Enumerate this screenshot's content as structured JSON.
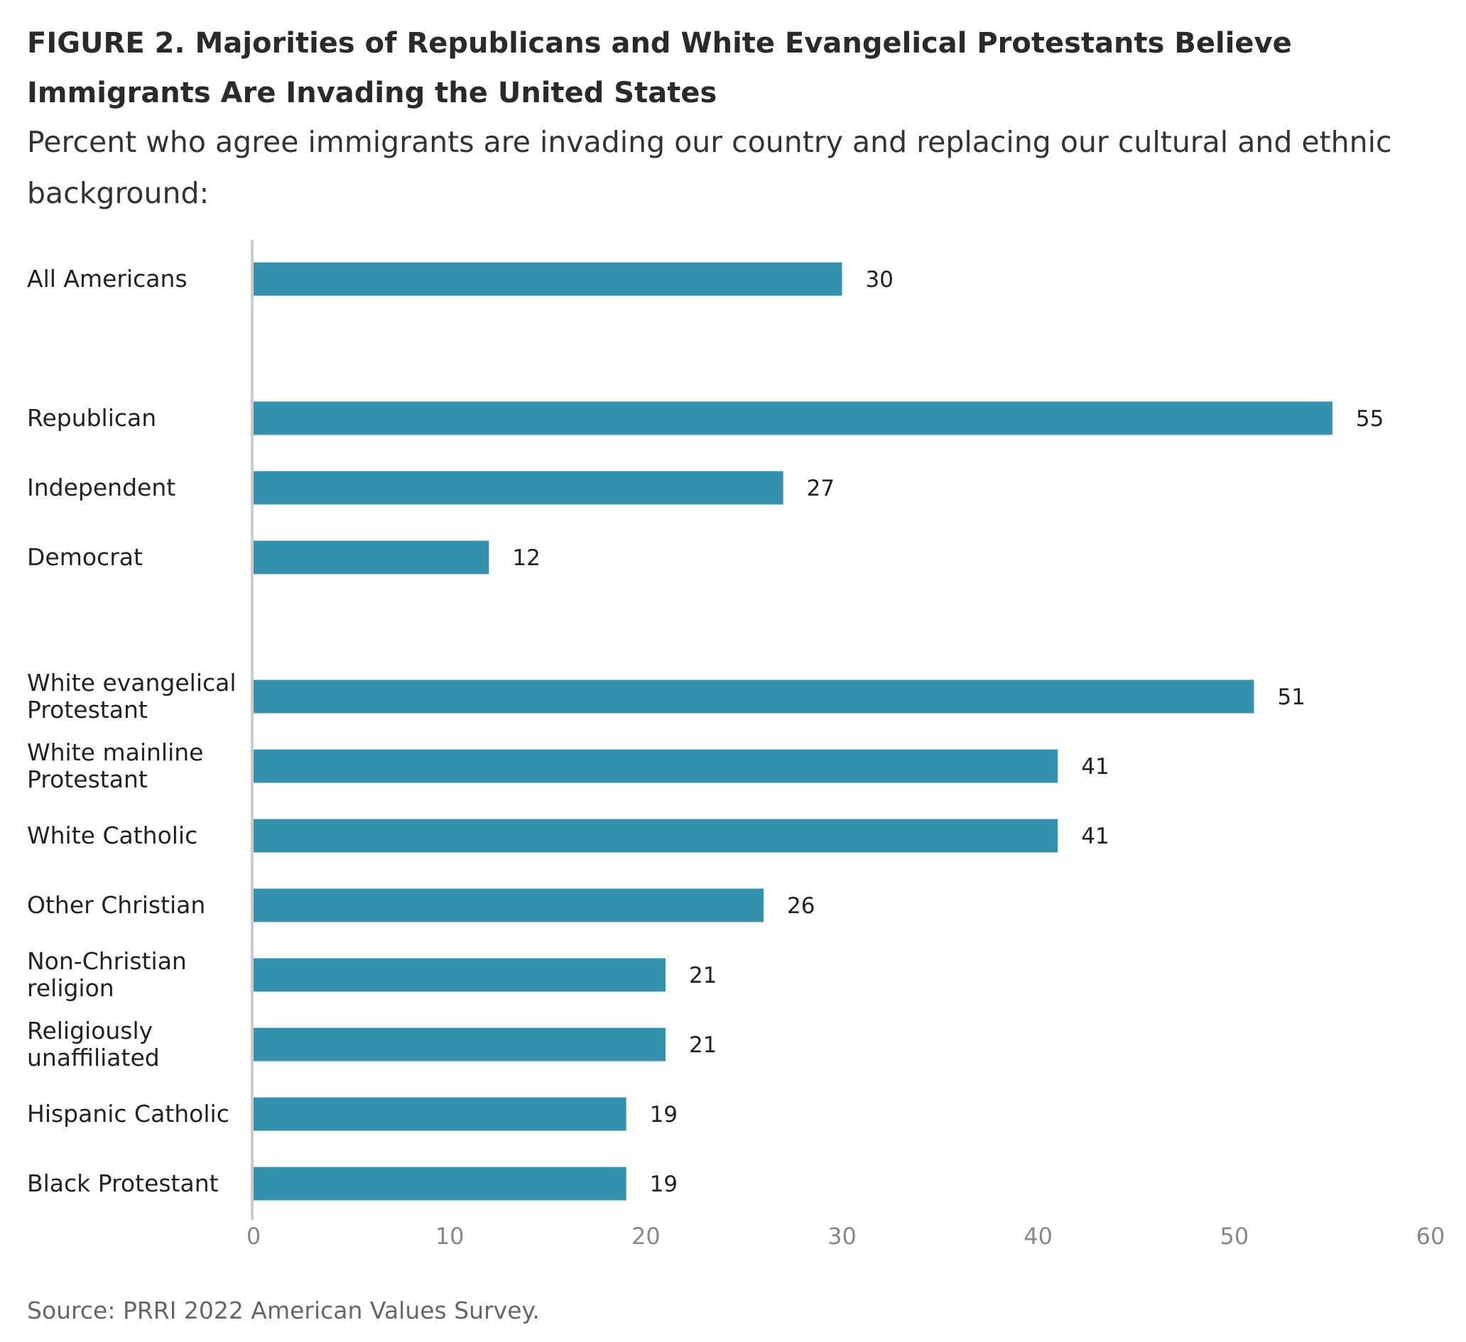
{
  "title": "FIGURE 2.  Majorities of Republicans and White Evangelical Protestants Believe Immigrants Are Invading the United States",
  "subtitle": "Percent who agree immigrants are invading our country and replacing our cultural and ethnic background:",
  "source": "Source: PRRI 2022 American Values Survey.",
  "colors": {
    "bar": "#3592AF",
    "axis_line": "#cccccc",
    "tick_label": "#888888",
    "category_label": "#222222",
    "value_label": "#222222"
  },
  "chart_data": {
    "type": "bar",
    "orientation": "horizontal",
    "categories": [
      [
        "All Americans"
      ],
      [
        "Republican"
      ],
      [
        "Independent"
      ],
      [
        "Democrat"
      ],
      [
        "White evangelical",
        "Protestant"
      ],
      [
        "White mainline",
        "Protestant"
      ],
      [
        "White Catholic"
      ],
      [
        "Other Christian"
      ],
      [
        "Non-Christian",
        "religion"
      ],
      [
        "Religiously",
        "unaffiliated"
      ],
      [
        "Hispanic Catholic"
      ],
      [
        "Black Protestant"
      ]
    ],
    "values": [
      30,
      55,
      27,
      12,
      51,
      41,
      41,
      26,
      21,
      21,
      19,
      19
    ],
    "value_labels": [
      "30",
      "55",
      "27",
      "12",
      "51",
      "41",
      "41",
      "26",
      "21",
      "21",
      "19",
      "19"
    ],
    "groups": [
      [
        0
      ],
      [
        1,
        2,
        3
      ],
      [
        4,
        5,
        6,
        7,
        8,
        9,
        10,
        11
      ]
    ],
    "xlim": [
      0,
      60
    ],
    "xticks": [
      0,
      10,
      20,
      30,
      40,
      50,
      60
    ],
    "xlabel": "",
    "ylabel": "",
    "grid": false,
    "legend": "none"
  }
}
